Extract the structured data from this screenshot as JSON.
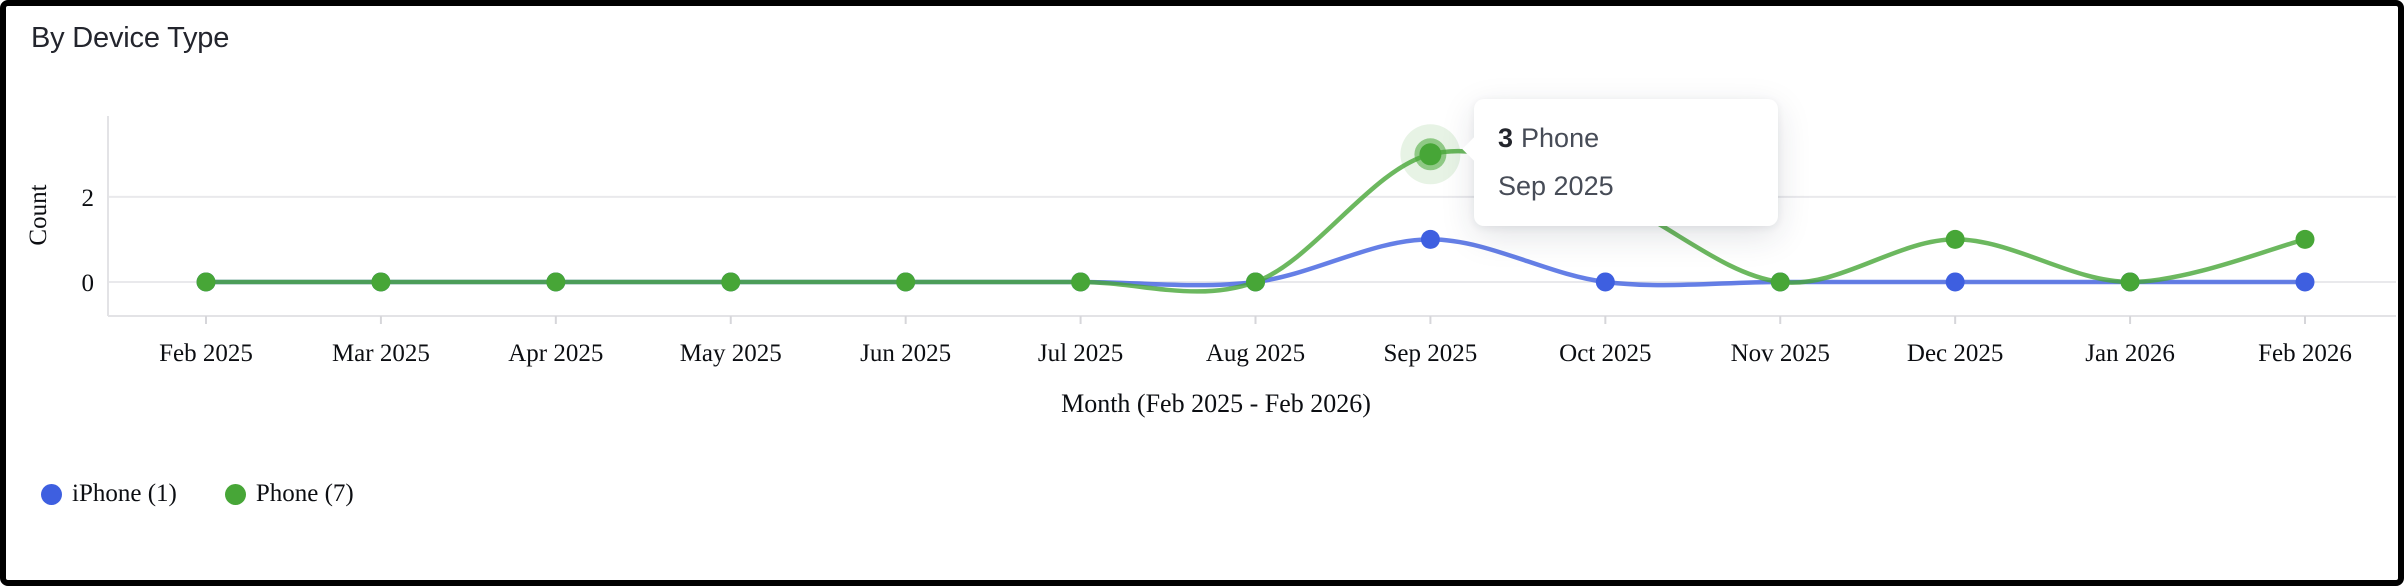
{
  "chart_data": {
    "type": "line",
    "title": "By Device Type",
    "xlabel": "Month (Feb 2025 - Feb 2026)",
    "ylabel": "Count",
    "categories": [
      "Feb 2025",
      "Mar 2025",
      "Apr 2025",
      "May 2025",
      "Jun 2025",
      "Jul 2025",
      "Aug 2025",
      "Sep 2025",
      "Oct 2025",
      "Nov 2025",
      "Dec 2025",
      "Jan 2026",
      "Feb 2026"
    ],
    "series": [
      {
        "name": "iPhone",
        "legend_label": "iPhone (1)",
        "total": 1,
        "color": "#3e5fe0",
        "values": [
          0,
          0,
          0,
          0,
          0,
          0,
          0,
          1,
          0,
          0,
          0,
          0,
          0
        ]
      },
      {
        "name": "Phone",
        "legend_label": "Phone (7)",
        "total": 7,
        "color": "#47a637",
        "values": [
          0,
          0,
          0,
          0,
          0,
          0,
          0,
          3,
          2,
          0,
          1,
          0,
          1
        ]
      }
    ],
    "yticks": [
      0,
      2
    ],
    "ylim": [
      -0.8,
      3.9
    ],
    "grid": "horizontal-only",
    "legend_position": "bottom-left",
    "curve": "smooth-spline"
  },
  "tooltip": {
    "value": "3",
    "series": "Phone",
    "period": "Sep 2025"
  },
  "colors": {
    "grid": "#e9e9ec",
    "axis": "#e3e3e6",
    "tick": "#d6d6da",
    "axis_text": "#0c0e12",
    "title_text": "#23252d",
    "tooltip_text": "#474c57",
    "panel_border": "#000000",
    "background": "#ffffff"
  }
}
